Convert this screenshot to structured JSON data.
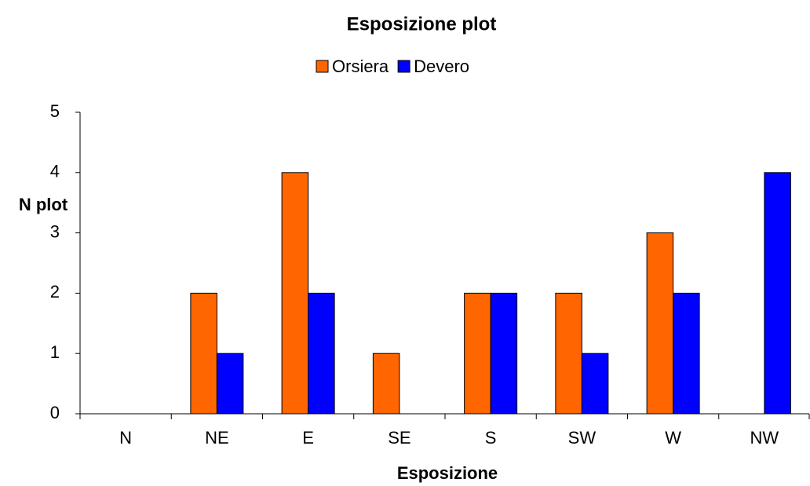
{
  "chart_data": {
    "type": "bar",
    "title": "Esposizione plot",
    "x_label": "Esposizione",
    "y_label": "N plot",
    "categories": [
      "N",
      "NE",
      "E",
      "SE",
      "S",
      "SW",
      "W",
      "NW"
    ],
    "series": [
      {
        "name": "Orsiera",
        "color": "#ff6600",
        "values": [
          0,
          2,
          4,
          1,
          2,
          2,
          3,
          0
        ]
      },
      {
        "name": "Devero",
        "color": "#0000ff",
        "values": [
          0,
          1,
          2,
          0,
          2,
          1,
          2,
          4
        ]
      }
    ],
    "ylim": [
      0,
      5
    ],
    "yticks": [
      0,
      1,
      2,
      3,
      4,
      5
    ],
    "grid": false,
    "legend": "top"
  }
}
